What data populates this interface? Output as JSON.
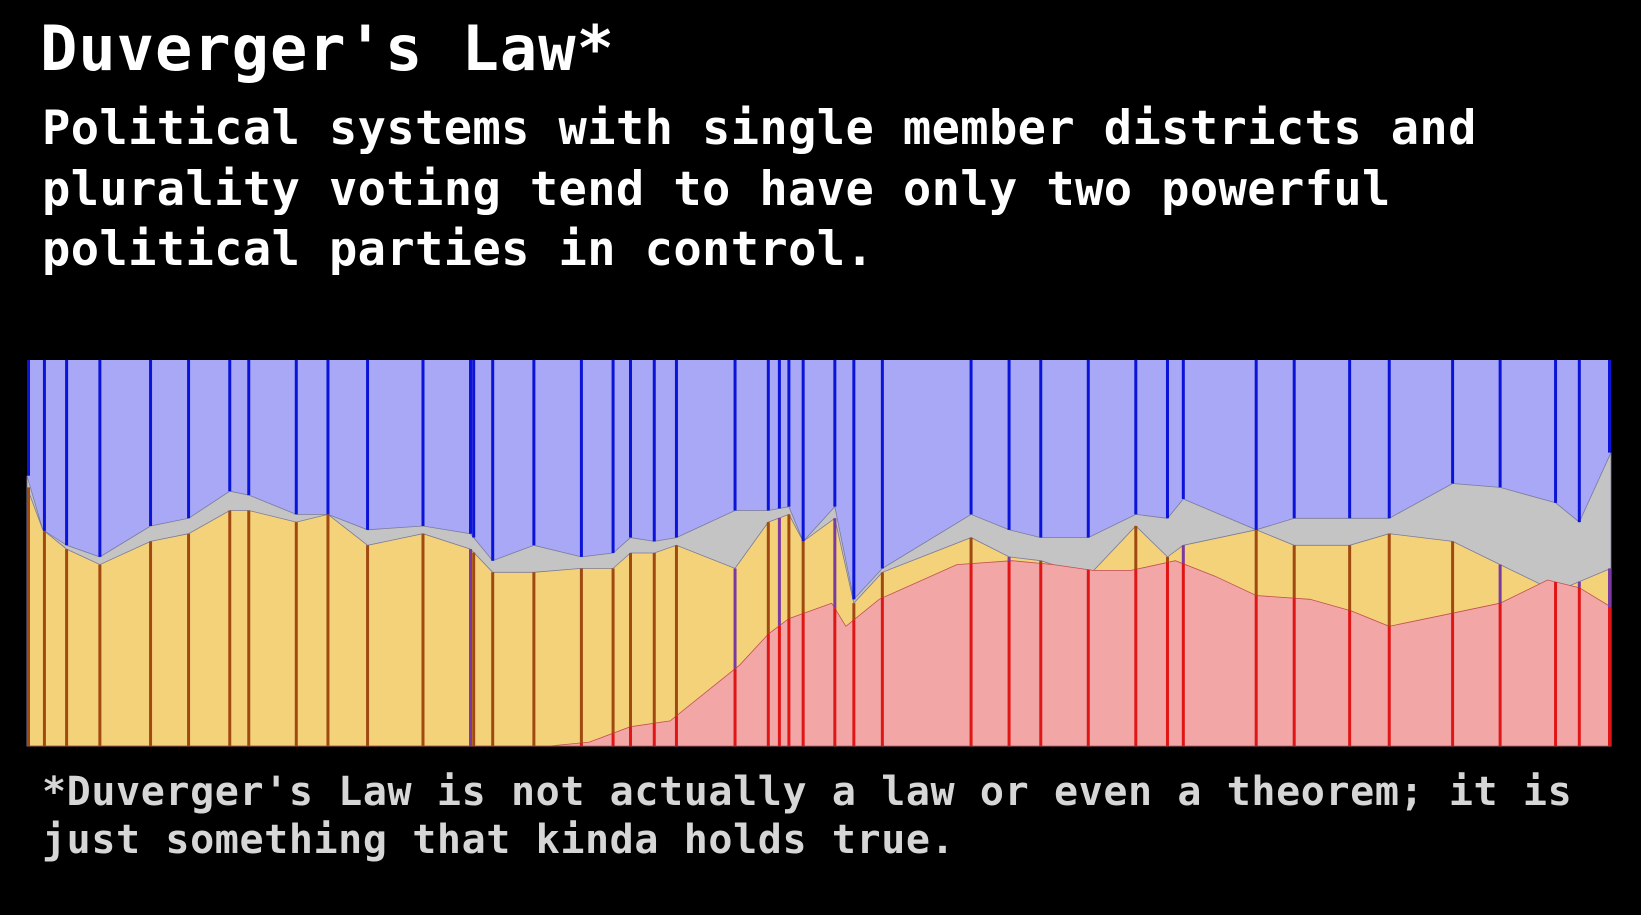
{
  "title": "Duverger's Law*",
  "subtitle": "Political systems with single member districts and plurality voting tend to have only two powerful political parties in control.",
  "footnote": "*Duverger's Law is not actually a law or even a theorem; it is just something that kinda holds true.",
  "colors": {
    "background": "#000000",
    "blue_fill": "#a8a8f7",
    "grey_fill": "#c4c4c4",
    "yellow_fill": "#f4d27a",
    "red_fill": "#f2a6a6",
    "blue_line": "#0b14d6",
    "red_line": "#e01616",
    "dark_line": "#a04a12"
  },
  "chart_data": {
    "type": "area",
    "stacking": "percent",
    "ylim": [
      0,
      1
    ],
    "xlim": [
      0,
      1
    ],
    "grid": false,
    "legend": "none",
    "series": [
      {
        "name": "",
        "color": "red",
        "points": [
          [
            0,
            0
          ],
          [
            0.33,
            0
          ],
          [
            0.355,
            0.01
          ],
          [
            0.381,
            0.05
          ],
          [
            0.406,
            0.065
          ],
          [
            0.45,
            0.21
          ],
          [
            0.468,
            0.29
          ],
          [
            0.481,
            0.33
          ],
          [
            0.508,
            0.37
          ],
          [
            0.517,
            0.31
          ],
          [
            0.538,
            0.38
          ],
          [
            0.587,
            0.47
          ],
          [
            0.622,
            0.48
          ],
          [
            0.648,
            0.47
          ],
          [
            0.673,
            0.455
          ],
          [
            0.697,
            0.455
          ],
          [
            0.725,
            0.48
          ],
          [
            0.75,
            0.44
          ],
          [
            0.776,
            0.39
          ],
          [
            0.81,
            0.38
          ],
          [
            0.836,
            0.35
          ],
          [
            0.86,
            0.31
          ],
          [
            0.895,
            0.34
          ],
          [
            0.93,
            0.37
          ],
          [
            0.96,
            0.43
          ],
          [
            0.98,
            0.41
          ],
          [
            1.0,
            0.36
          ],
          [
            1.0,
            0.35
          ],
          [
            0.965,
            0.33
          ],
          [
            0.955,
            0.38
          ],
          [
            0.935,
            0.3
          ],
          [
            0.913,
            0.29
          ],
          [
            0.88,
            0.3
          ],
          [
            0.84,
            0.33
          ],
          [
            0.8,
            0.28
          ],
          [
            0.776,
            0.38
          ],
          [
            0.745,
            0.39
          ],
          [
            0.712,
            0.44
          ],
          [
            0.688,
            0.455
          ],
          [
            0.645,
            0.45
          ],
          [
            0.6,
            0.48
          ],
          [
            0.57,
            0.47
          ],
          [
            0.535,
            0.38
          ],
          [
            0.52,
            0.33
          ],
          [
            0.49,
            0.35
          ],
          [
            0.473,
            0.35
          ],
          [
            0.455,
            0.3
          ],
          [
            1.0,
            0.35
          ]
        ]
      },
      {
        "name": "",
        "color": "yellow",
        "points": [
          [
            0,
            0.67
          ],
          [
            0.01,
            0.56
          ],
          [
            0.025,
            0.51
          ],
          [
            0.046,
            0.47
          ],
          [
            0.078,
            0.53
          ],
          [
            0.102,
            0.55
          ],
          [
            0.128,
            0.61
          ],
          [
            0.14,
            0.61
          ],
          [
            0.17,
            0.58
          ],
          [
            0.19,
            0.6
          ],
          [
            0.215,
            0.52
          ],
          [
            0.25,
            0.55
          ],
          [
            0.28,
            0.51
          ],
          [
            0.294,
            0.45
          ],
          [
            0.32,
            0.45
          ],
          [
            0.35,
            0.46
          ],
          [
            0.37,
            0.46
          ],
          [
            0.381,
            0.5
          ],
          [
            0.396,
            0.5
          ],
          [
            0.41,
            0.52
          ],
          [
            0.447,
            0.46
          ],
          [
            0.468,
            0.58
          ],
          [
            0.481,
            0.6
          ],
          [
            0.49,
            0.53
          ],
          [
            0.51,
            0.59
          ],
          [
            0.522,
            0.37
          ],
          [
            0.54,
            0.45
          ],
          [
            0.596,
            0.54
          ],
          [
            0.62,
            0.49
          ],
          [
            0.64,
            0.48
          ],
          [
            0.67,
            0.44
          ],
          [
            0.7,
            0.57
          ],
          [
            0.72,
            0.49
          ],
          [
            0.73,
            0.52
          ],
          [
            0.776,
            0.56
          ],
          [
            0.8,
            0.52
          ],
          [
            0.835,
            0.52
          ],
          [
            0.86,
            0.55
          ],
          [
            0.9,
            0.53
          ],
          [
            0.93,
            0.47
          ],
          [
            0.965,
            0.4
          ],
          [
            1.0,
            0.46
          ]
        ]
      },
      {
        "name": "",
        "color": "grey",
        "points": [
          [
            0,
            0.7
          ],
          [
            0.01,
            0.56
          ],
          [
            0.025,
            0.52
          ],
          [
            0.046,
            0.49
          ],
          [
            0.078,
            0.57
          ],
          [
            0.102,
            0.59
          ],
          [
            0.128,
            0.66
          ],
          [
            0.14,
            0.65
          ],
          [
            0.17,
            0.6
          ],
          [
            0.19,
            0.6
          ],
          [
            0.215,
            0.56
          ],
          [
            0.25,
            0.57
          ],
          [
            0.28,
            0.55
          ],
          [
            0.294,
            0.48
          ],
          [
            0.32,
            0.52
          ],
          [
            0.35,
            0.49
          ],
          [
            0.37,
            0.5
          ],
          [
            0.381,
            0.54
          ],
          [
            0.396,
            0.53
          ],
          [
            0.41,
            0.54
          ],
          [
            0.447,
            0.61
          ],
          [
            0.468,
            0.61
          ],
          [
            0.481,
            0.62
          ],
          [
            0.49,
            0.53
          ],
          [
            0.51,
            0.62
          ],
          [
            0.522,
            0.38
          ],
          [
            0.54,
            0.46
          ],
          [
            0.596,
            0.6
          ],
          [
            0.62,
            0.56
          ],
          [
            0.64,
            0.54
          ],
          [
            0.67,
            0.54
          ],
          [
            0.7,
            0.6
          ],
          [
            0.72,
            0.59
          ],
          [
            0.73,
            0.64
          ],
          [
            0.776,
            0.56
          ],
          [
            0.8,
            0.59
          ],
          [
            0.835,
            0.59
          ],
          [
            0.86,
            0.59
          ],
          [
            0.9,
            0.68
          ],
          [
            0.93,
            0.67
          ],
          [
            0.965,
            0.63
          ],
          [
            0.98,
            0.58
          ],
          [
            1.0,
            0.76
          ]
        ]
      },
      {
        "name": "",
        "color": "blue",
        "points": [
          [
            0,
            1.0
          ],
          [
            1.0,
            1.0
          ]
        ]
      }
    ],
    "elections_x": [
      0.0,
      0.011,
      0.025,
      0.046,
      0.078,
      0.102,
      0.128,
      0.14,
      0.17,
      0.19,
      0.215,
      0.25,
      0.28,
      0.282,
      0.294,
      0.32,
      0.35,
      0.37,
      0.381,
      0.396,
      0.41,
      0.447,
      0.468,
      0.475,
      0.481,
      0.49,
      0.51,
      0.522,
      0.54,
      0.596,
      0.62,
      0.64,
      0.67,
      0.7,
      0.72,
      0.73,
      0.776,
      0.8,
      0.835,
      0.86,
      0.9,
      0.93,
      0.965,
      0.98,
      1.0
    ],
    "election_winner": [
      "red",
      "red",
      "red",
      "red",
      "red",
      "red",
      "red",
      "red",
      "red",
      "red",
      "red",
      "red",
      "blue",
      "red",
      "red",
      "red",
      "red",
      "red",
      "red",
      "red",
      "red",
      "blue",
      "red",
      "blue",
      "red",
      "red",
      "blue",
      "red",
      "red",
      "red",
      "blue",
      "red",
      "blue",
      "red",
      "red",
      "blue",
      "red",
      "red",
      "red",
      "red",
      "red",
      "blue",
      "red",
      "blue",
      "blue"
    ]
  }
}
